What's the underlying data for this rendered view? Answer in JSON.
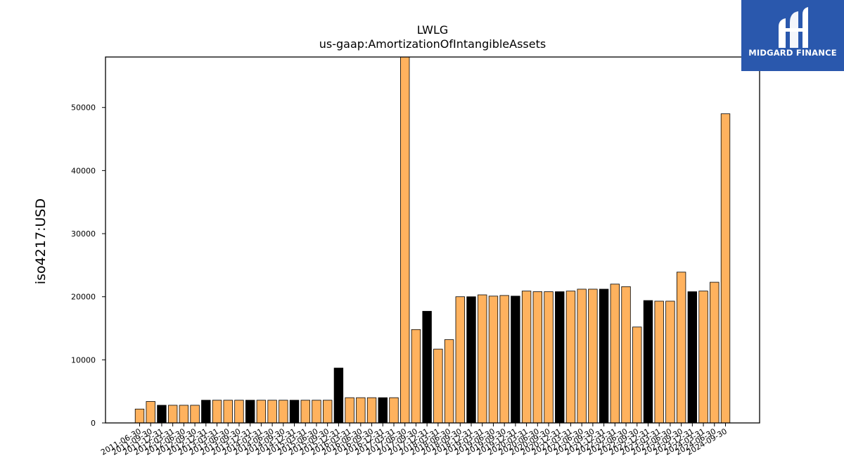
{
  "logo": {
    "text": "MIDGARD FINANCE",
    "background": "#2a58ad"
  },
  "chart_data": {
    "type": "bar",
    "title": "LWLG",
    "subtitle": "us-gaap:AmortizationOfIntangibleAssets",
    "xlabel": "",
    "ylabel": "iso4217:USD",
    "ylim": [
      0,
      58000
    ],
    "yticks": [
      0,
      10000,
      20000,
      30000,
      40000,
      50000
    ],
    "grid": false,
    "colors": {
      "highlight": "#000000",
      "default": "#ffb25e"
    },
    "categories": [
      "2011-06-30",
      "2011-09-30",
      "2011-12-31",
      "2012-03-31",
      "2012-06-30",
      "2012-09-30",
      "2012-12-31",
      "2013-03-31",
      "2013-06-30",
      "2013-09-30",
      "2013-12-31",
      "2014-03-31",
      "2014-06-30",
      "2014-09-30",
      "2014-12-31",
      "2015-03-31",
      "2015-06-30",
      "2015-09-30",
      "2015-12-31",
      "2016-03-31",
      "2016-06-30",
      "2016-09-30",
      "2016-12-31",
      "2017-03-31",
      "2017-06-30",
      "2017-09-30",
      "2017-12-31",
      "2018-03-31",
      "2018-06-30",
      "2018-09-30",
      "2018-12-31",
      "2019-03-31",
      "2019-06-30",
      "2019-09-30",
      "2019-12-31",
      "2020-03-31",
      "2020-06-30",
      "2020-09-30",
      "2020-12-31",
      "2021-03-31",
      "2021-06-30",
      "2021-09-30",
      "2021-12-31",
      "2022-03-31",
      "2022-06-30",
      "2022-09-30",
      "2022-12-31",
      "2023-03-31",
      "2023-06-30",
      "2023-09-30",
      "2023-12-31",
      "2024-03-31",
      "2024-06-30",
      "2024-09-30"
    ],
    "values": [
      2200,
      3400,
      2800,
      2800,
      2800,
      2800,
      3600,
      3600,
      3600,
      3600,
      3600,
      3600,
      3600,
      3600,
      3600,
      3600,
      3600,
      3600,
      8700,
      4000,
      4000,
      4000,
      4000,
      4000,
      58500,
      14800,
      17700,
      11700,
      13200,
      20000,
      20000,
      20300,
      20100,
      20200,
      20100,
      20900,
      20800,
      20800,
      20800,
      20900,
      21200,
      21200,
      21200,
      22000,
      21600,
      15200,
      19400,
      19300,
      19300,
      23900,
      20800,
      20900,
      22300,
      49000
    ],
    "highlighted": [
      false,
      false,
      true,
      false,
      false,
      false,
      true,
      false,
      false,
      false,
      true,
      false,
      false,
      false,
      true,
      false,
      false,
      false,
      true,
      false,
      false,
      false,
      true,
      false,
      false,
      false,
      true,
      false,
      false,
      false,
      true,
      false,
      false,
      false,
      true,
      false,
      false,
      false,
      true,
      false,
      false,
      false,
      true,
      false,
      false,
      false,
      true,
      false,
      false,
      false,
      true,
      false,
      false,
      false
    ]
  }
}
